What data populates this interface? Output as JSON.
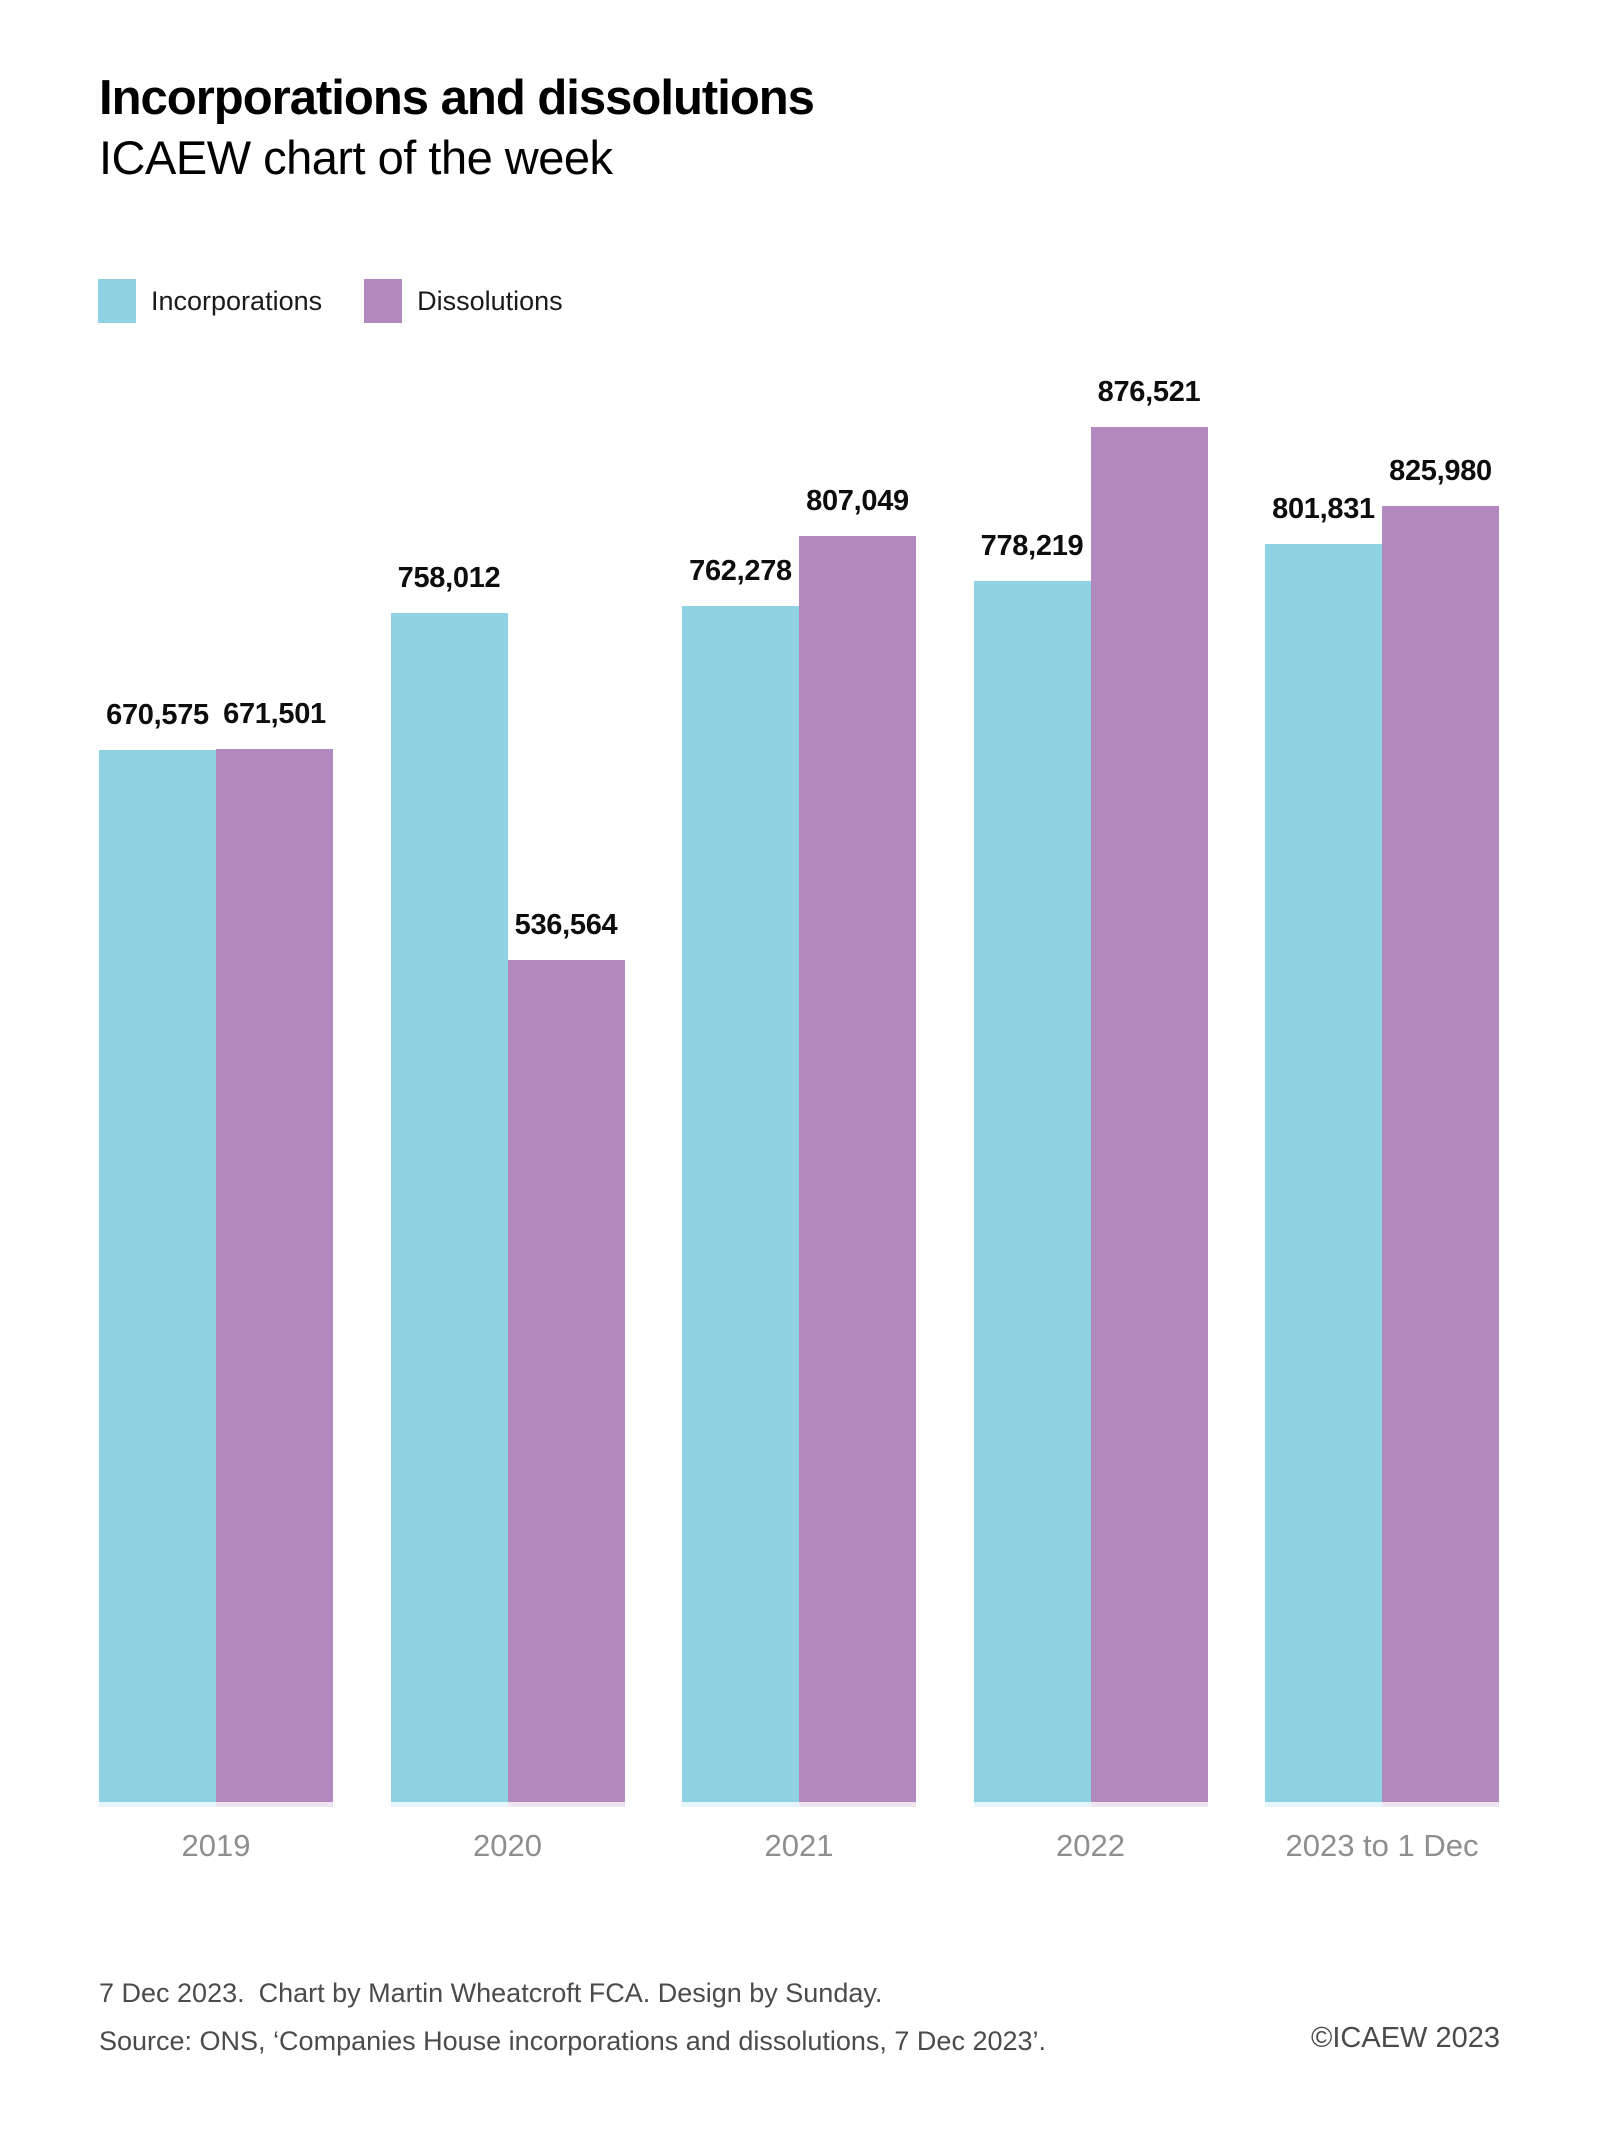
{
  "header": {
    "title": "Incorporations and dissolutions",
    "subtitle": "ICAEW chart of the week"
  },
  "legend": {
    "items": [
      {
        "label": "Incorporations",
        "color": "#8FD2E4"
      },
      {
        "label": "Dissolutions",
        "color": "#B289BE"
      }
    ]
  },
  "chart_data": {
    "type": "bar",
    "title": "Incorporations and dissolutions",
    "subtitle": "ICAEW chart of the week",
    "categories": [
      "2019",
      "2020",
      "2021",
      "2022",
      "2023 to 1 Dec"
    ],
    "series": [
      {
        "name": "Incorporations",
        "color": "#8FD2E4",
        "values": [
          670575,
          758012,
          762278,
          778219,
          801831
        ],
        "value_labels": [
          "670,575",
          "758,012",
          "762,278",
          "778,219",
          "801,831"
        ]
      },
      {
        "name": "Dissolutions",
        "color": "#B289BE",
        "values": [
          671501,
          536564,
          807049,
          876521,
          825980
        ],
        "value_labels": [
          "671,501",
          "536,564",
          "807,049",
          "876,521",
          "825,980"
        ]
      }
    ],
    "ylim": [
      0,
      880000
    ],
    "grid": false,
    "legend_position": "top-left",
    "value_labels_shown": true,
    "x_axis_label_color": "#8E8E8E"
  },
  "footer": {
    "date": "7 Dec 2023.",
    "credit": "Chart by Martin Wheatcroft FCA. Design by Sunday.",
    "source": "Source: ONS, ‘Companies House incorporations and dissolutions, 7 Dec 2023’.",
    "copyright": "©ICAEW 2023"
  }
}
